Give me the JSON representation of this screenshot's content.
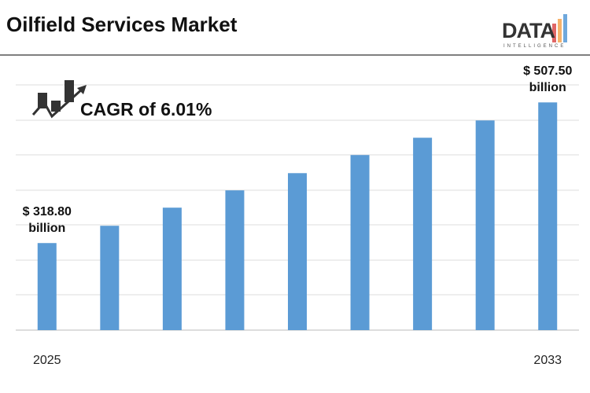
{
  "chart_data": {
    "type": "bar",
    "title": "Oilfield Services Market",
    "annotation": "CAGR of 6.01%",
    "logo": {
      "text": "DATA",
      "subtext": "INTELLIGENCE"
    },
    "categories": [
      "2025",
      null,
      null,
      null,
      null,
      null,
      null,
      null,
      "2033"
    ],
    "values": [
      318.8,
      342.0,
      366.3,
      389.5,
      412.6,
      436.9,
      460.1,
      483.3,
      507.5
    ],
    "value_labels": [
      "$ 318.80 billion",
      null,
      null,
      null,
      null,
      null,
      null,
      null,
      "$ 507.50 billion"
    ],
    "color": "#5b9bd5",
    "ylim": [
      202,
      531
    ],
    "grid": true
  }
}
